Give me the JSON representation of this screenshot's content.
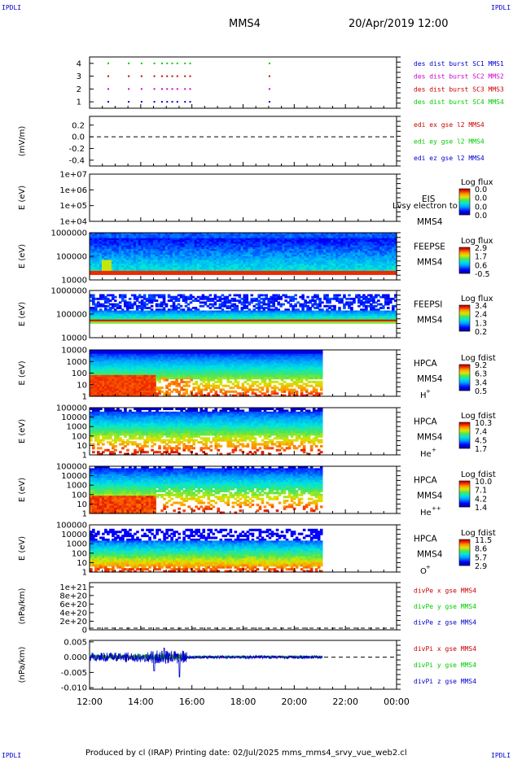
{
  "header": {
    "corner_label": "IPDLI",
    "mission": "MMS4",
    "date": "20/Apr/2019 12:00"
  },
  "footer": {
    "text": "Produced by cl (IRAP)   Printing date: 02/Jul/2025   mms_mms4_srvy_vue_web2.cl"
  },
  "colors": {
    "red": "#cc0000",
    "green": "#00cc00",
    "blue": "#0000cc",
    "magenta": "#cc00cc",
    "black": "#000000"
  },
  "x_axis": {
    "ticks": [
      "12:00",
      "14:00",
      "16:00",
      "18:00",
      "20:00",
      "22:00",
      "00:00"
    ]
  },
  "chart_data": [
    {
      "type": "scatter",
      "id": "burst",
      "yticks": [
        "4",
        "3",
        "2",
        "1"
      ],
      "ylim": [
        0.5,
        4.5
      ],
      "legend": [
        {
          "text": "des dist burst SC1 MMS1",
          "color": "#0000cc"
        },
        {
          "text": "des dist burst SC2 MMS2",
          "color": "#cc00cc"
        },
        {
          "text": "des dist burst SC3 MMS3",
          "color": "#cc0000"
        },
        {
          "text": "des dist burst SC4 MMS4",
          "color": "#00cc00"
        }
      ],
      "series": [
        {
          "level": 4,
          "color": "#00cc00",
          "x": [
            12.7,
            13.5,
            14.0,
            14.5,
            14.8,
            15.0,
            15.2,
            15.4,
            15.7,
            15.9,
            19.0
          ]
        },
        {
          "level": 3,
          "color": "#cc0000",
          "x": [
            12.7,
            13.5,
            14.0,
            14.5,
            14.8,
            15.0,
            15.2,
            15.4,
            15.7,
            15.9,
            19.0
          ]
        },
        {
          "level": 2,
          "color": "#cc00cc",
          "x": [
            12.7,
            13.5,
            14.0,
            14.5,
            14.8,
            15.0,
            15.2,
            15.4,
            15.7,
            15.9,
            19.0
          ]
        },
        {
          "level": 1,
          "color": "#0000cc",
          "x": [
            12.7,
            13.5,
            14.0,
            14.5,
            14.8,
            15.0,
            15.2,
            15.4,
            15.7,
            15.9,
            19.0
          ]
        }
      ]
    },
    {
      "type": "line",
      "id": "efield",
      "ylabel": "(mV/m)",
      "yticks": [
        "0.2",
        "0.0",
        "-0.2",
        "-0.4"
      ],
      "ylim": [
        -0.5,
        0.35
      ],
      "legend": [
        {
          "text": "edi ex gse l2 MMS4",
          "color": "#cc0000"
        },
        {
          "text": "edi ey gse l2 MMS4",
          "color": "#00cc00"
        },
        {
          "text": "edi ez gse l2 MMS4",
          "color": "#0000cc"
        }
      ],
      "zero_line": 0.0
    },
    {
      "type": "heatmap",
      "id": "eis",
      "ylabel": "E (eV)",
      "yticks": [
        "1e+07",
        "1e+06",
        "1e+05",
        "1e+04"
      ],
      "labels": [
        "EIS",
        "MMS4"
      ],
      "overlay": "Lvsy electron to",
      "colorbar": {
        "title": "Log flux",
        "ticks": [
          "0.0",
          "0.0",
          "0.0",
          "0.0"
        ]
      }
    },
    {
      "type": "heatmap",
      "id": "feepse",
      "ylabel": "E (eV)",
      "yticks": [
        "1000000",
        "100000",
        "10000"
      ],
      "labels": [
        "FEEPSE",
        "MMS4"
      ],
      "colorbar": {
        "title": "Log flux",
        "ticks": [
          "2.9",
          "1.7",
          "0.6",
          "-0.5"
        ]
      },
      "x_range": [
        12.0,
        24.0
      ]
    },
    {
      "type": "heatmap",
      "id": "feepsi",
      "ylabel": "E (eV)",
      "yticks": [
        "1000000",
        "100000",
        "10000"
      ],
      "labels": [
        "FEEPSI",
        "MMS4"
      ],
      "colorbar": {
        "title": "Log flux",
        "ticks": [
          "3.4",
          "2.4",
          "1.3",
          "0.2"
        ]
      },
      "x_range": [
        12.0,
        24.0
      ]
    },
    {
      "type": "heatmap",
      "id": "hpca_h",
      "ylabel": "E (eV)",
      "yticks": [
        "10000",
        "1000",
        "100",
        "10",
        "1"
      ],
      "labels": [
        "HPCA",
        "MMS4"
      ],
      "species": "H",
      "species_sup": "+",
      "colorbar": {
        "title": "Log fdist",
        "ticks": [
          "9.2",
          "6.3",
          "3.4",
          "0.5"
        ]
      },
      "x_range": [
        12.0,
        21.1
      ]
    },
    {
      "type": "heatmap",
      "id": "hpca_he",
      "ylabel": "E (eV)",
      "yticks": [
        "100000",
        "10000",
        "1000",
        "100",
        "10",
        "1"
      ],
      "labels": [
        "HPCA",
        "MMS4"
      ],
      "species": "He",
      "species_sup": "+",
      "colorbar": {
        "title": "Log fdist",
        "ticks": [
          "10.3",
          "7.4",
          "4.5",
          "1.7"
        ]
      },
      "x_range": [
        12.0,
        21.1
      ]
    },
    {
      "type": "heatmap",
      "id": "hpca_he2",
      "ylabel": "E (eV)",
      "yticks": [
        "100000",
        "10000",
        "1000",
        "100",
        "10",
        "1"
      ],
      "labels": [
        "HPCA",
        "MMS4"
      ],
      "species": "He",
      "species_sup": "++",
      "colorbar": {
        "title": "Log fdist",
        "ticks": [
          "10.0",
          "7.1",
          "4.2",
          "1.4"
        ]
      },
      "x_range": [
        12.0,
        21.1
      ]
    },
    {
      "type": "heatmap",
      "id": "hpca_o",
      "ylabel": "E (eV)",
      "yticks": [
        "100000",
        "10000",
        "1000",
        "100",
        "10",
        "1"
      ],
      "labels": [
        "HPCA",
        "MMS4"
      ],
      "species": "O",
      "species_sup": "+",
      "colorbar": {
        "title": "Log fdist",
        "ticks": [
          "11.5",
          "8.6",
          "5.7",
          "2.9"
        ]
      },
      "x_range": [
        12.0,
        21.1
      ]
    },
    {
      "type": "line",
      "id": "divpe",
      "ylabel": "(nPa/km)",
      "yticks": [
        "1e+21",
        "8e+20",
        "6e+20",
        "4e+20",
        "2e+20",
        "0"
      ],
      "ylim": [
        0,
        1.1e+21
      ],
      "legend": [
        {
          "text": "divPe x gse MMS4",
          "color": "#cc0000"
        },
        {
          "text": "divPe y gse MMS4",
          "color": "#00cc00"
        },
        {
          "text": "divPe z gse MMS4",
          "color": "#0000cc"
        }
      ],
      "zero_line": 0
    },
    {
      "type": "line",
      "id": "divpi",
      "ylabel": "(nPa/km)",
      "yticks": [
        "0.005",
        "0.000",
        "-0.005",
        "-0.010"
      ],
      "ylim": [
        -0.0105,
        0.0055
      ],
      "legend": [
        {
          "text": "divPi x gse MMS4",
          "color": "#cc0000"
        },
        {
          "text": "divPi y gse MMS4",
          "color": "#00cc00"
        },
        {
          "text": "divPi z gse MMS4",
          "color": "#0000cc"
        }
      ],
      "zero_line": 0.0,
      "x_range": [
        12.0,
        21.1
      ]
    }
  ]
}
